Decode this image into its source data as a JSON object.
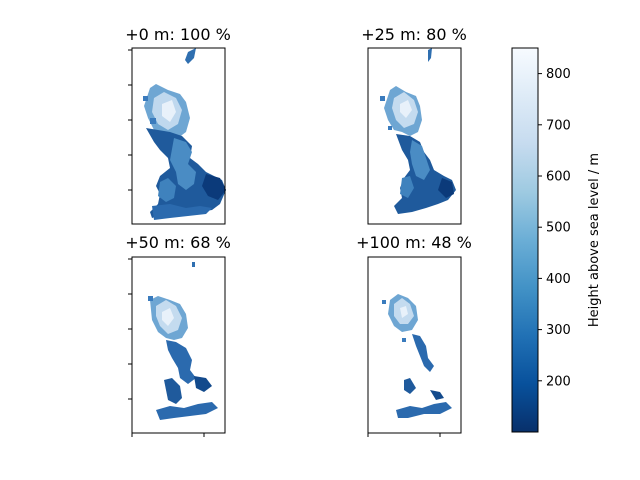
{
  "chart_data": {
    "type": "heatmap",
    "subplots": [
      {
        "title": "+0 m: 100 %",
        "sea_level_rise_m": 0,
        "land_remaining_pct": 100
      },
      {
        "title": "+25 m: 80 %",
        "sea_level_rise_m": 25,
        "land_remaining_pct": 80
      },
      {
        "title": "+50 m: 68 %",
        "sea_level_rise_m": 50,
        "land_remaining_pct": 68
      },
      {
        "title": "+100 m: 48 %",
        "sea_level_rise_m": 100,
        "land_remaining_pct": 48
      }
    ],
    "colorbar": {
      "label": "Height above sea level / m",
      "min": 100,
      "max": 850,
      "ticks": [
        200,
        300,
        400,
        500,
        600,
        700,
        800
      ],
      "tick_labels": [
        "200",
        "300",
        "400",
        "500",
        "600",
        "700",
        "800"
      ],
      "colormap": "Blues_r",
      "color_low": "#08306b",
      "color_high": "#f7fbff"
    },
    "axes_tick_labels_hidden": true
  }
}
